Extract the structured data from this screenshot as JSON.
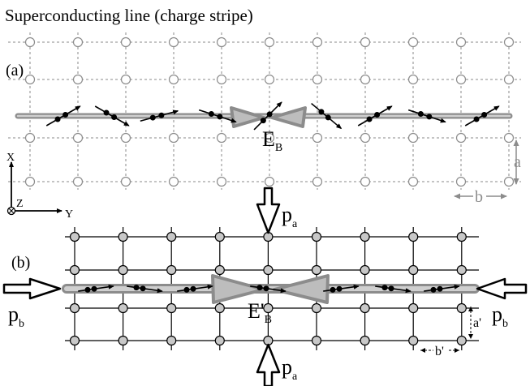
{
  "title": "Superconducting line (charge stripe)",
  "panels": {
    "a": {
      "label": "(a)",
      "energy_main": "E",
      "energy_sub": "B"
    },
    "b": {
      "label": "(b)",
      "energy_main": "E'",
      "energy_sub": "B"
    }
  },
  "lattice": {
    "a_label": "a",
    "b_label": "b",
    "a_prime_label": "a'",
    "b_prime_label": "b'"
  },
  "axes": {
    "x": "X",
    "y": "Y",
    "z": "Z"
  },
  "pressure": {
    "pa_main": "p",
    "pa_sub": "a",
    "pb_main": "p",
    "pb_sub": "b"
  },
  "colors": {
    "stripe": "#9a9a9a",
    "stripe_fill": "#bdbdbd",
    "node_fill_b": "#c8c8c8",
    "grid_a": "#8a8a8a",
    "grid_b": "#000000"
  }
}
